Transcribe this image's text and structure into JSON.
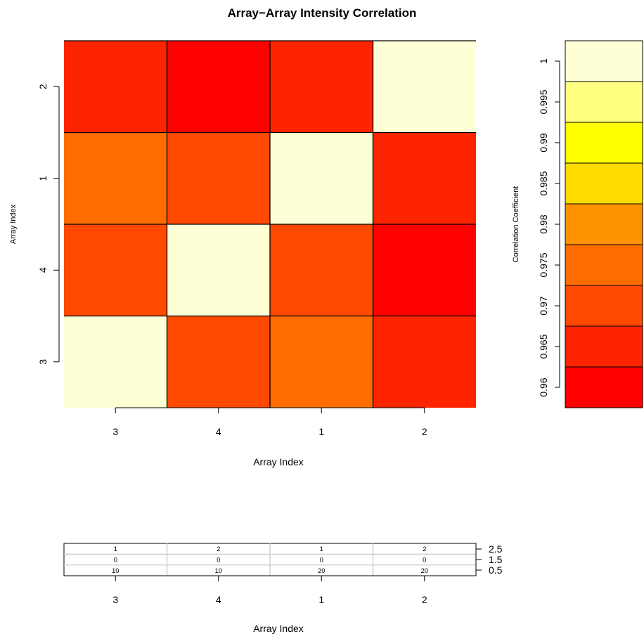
{
  "chart_data": [
    {
      "type": "heatmap",
      "title": "Array−Array Intensity Correlation",
      "xlabel": "Array Index",
      "ylabel": "Array Index",
      "x_categories": [
        "3",
        "4",
        "1",
        "2"
      ],
      "y_categories": [
        "3",
        "4",
        "1",
        "2"
      ],
      "values": [
        [
          1.0,
          0.9715,
          0.9755,
          0.9665
        ],
        [
          0.9715,
          1.0,
          0.971,
          0.9605
        ],
        [
          0.9755,
          0.971,
          1.0,
          0.9665
        ],
        [
          0.9665,
          0.9605,
          0.9665,
          1.0
        ]
      ],
      "legend": {
        "label": "Correlation Coefficient",
        "position": "right",
        "ticks": [
          "0.96",
          "0.965",
          "0.97",
          "0.975",
          "0.98",
          "0.985",
          "0.99",
          "0.995",
          "1"
        ],
        "range": [
          0.9575,
          1.0025
        ],
        "bins": [
          {
            "from": 0.9575,
            "to": 0.9625,
            "color": "#FF0000"
          },
          {
            "from": 0.9625,
            "to": 0.9675,
            "color": "#FF2400"
          },
          {
            "from": 0.9675,
            "to": 0.9725,
            "color": "#FF4900"
          },
          {
            "from": 0.9725,
            "to": 0.9775,
            "color": "#FF6D00"
          },
          {
            "from": 0.9775,
            "to": 0.9825,
            "color": "#FF9200"
          },
          {
            "from": 0.9825,
            "to": 0.9875,
            "color": "#FFDB00"
          },
          {
            "from": 0.9875,
            "to": 0.9925,
            "color": "#FFFF00"
          },
          {
            "from": 0.9925,
            "to": 0.9975,
            "color": "#FFFF80"
          },
          {
            "from": 0.9975,
            "to": 1.0025,
            "color": "#FFFFD5"
          }
        ]
      }
    },
    {
      "type": "table",
      "xlabel": "Array Index",
      "x_categories": [
        "3",
        "4",
        "1",
        "2"
      ],
      "y_ticks": [
        "2.5",
        "1.5",
        "0.5"
      ],
      "rows": [
        [
          "1",
          "2",
          "1",
          "2"
        ],
        [
          "0",
          "0",
          "0",
          "0"
        ],
        [
          "10",
          "10",
          "20",
          "20"
        ]
      ]
    }
  ]
}
